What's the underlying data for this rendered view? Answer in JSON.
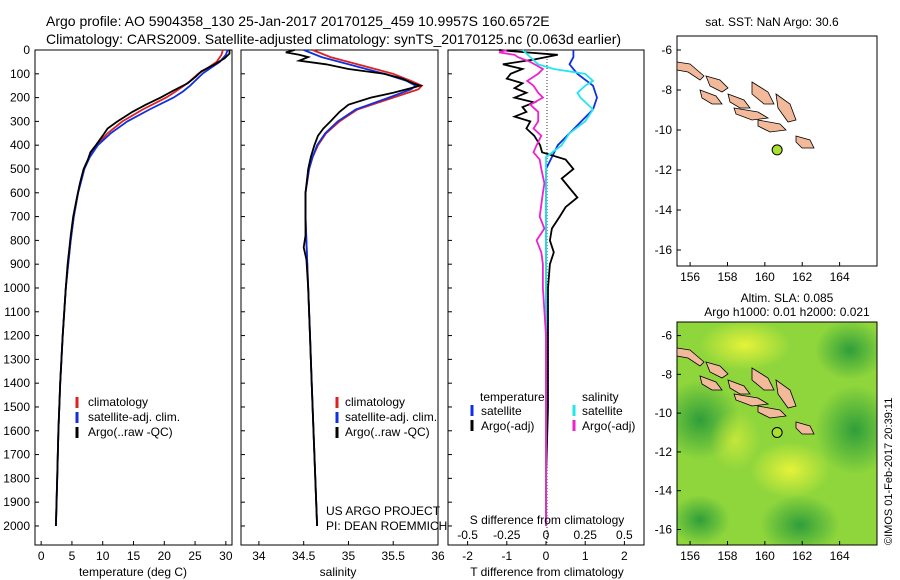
{
  "header": {
    "line1": "Argo profile: AO 5904358_130 25-Jan-2017 20170125_459 10.9957S 160.6572E",
    "line2": "Climatology: CARS2009. Satellite-adjusted climatology: synTS_20170125.nc (0.063d earlier)"
  },
  "colors": {
    "climatology": "#dd2222",
    "satellite": "#1030e0",
    "argo": "#000000",
    "sat_salinity": "#22e6ee",
    "argo_salinity": "#ee22cc",
    "land": "#f2b99a",
    "float_marker": "#a8e02a"
  },
  "depth_axis": {
    "ticks": [
      "0",
      "100",
      "200",
      "300",
      "400",
      "500",
      "600",
      "700",
      "800",
      "900",
      "1000",
      "1100",
      "1200",
      "1300",
      "1400",
      "1500",
      "1600",
      "1700",
      "1800",
      "1900",
      "2000"
    ]
  },
  "panels": {
    "temperature": {
      "xlabel": "temperature (deg C)",
      "xticks": [
        "0",
        "5",
        "10",
        "15",
        "20",
        "25",
        "30"
      ],
      "legend": [
        "climatology",
        "satellite-adj. clim.",
        "Argo(..raw -QC)"
      ]
    },
    "salinity": {
      "xlabel": "salinity",
      "xticks": [
        "34",
        "34.5",
        "35",
        "35.5",
        "36"
      ],
      "legend": [
        "climatology",
        "satellite-adj. clim.",
        "Argo(..raw -QC)"
      ],
      "project": "US ARGO PROJECT",
      "pi": "PI: DEAN ROEMMICH"
    },
    "difference": {
      "xlabel": "T difference from climatology",
      "xticks": [
        "-2",
        "-1",
        "0",
        "1",
        "2"
      ],
      "top_label": "S difference from climatology",
      "top_ticks": [
        "-0.5",
        "-0.25",
        "0",
        "0.25",
        "0.5"
      ],
      "legend_left_title": "temperature",
      "legend_left": [
        "satellite",
        "Argo(-adj)"
      ],
      "legend_right_title": "salinity",
      "legend_right": [
        "satellite",
        "Argo(-adj)"
      ]
    }
  },
  "maps": {
    "sst": {
      "title": "sat. SST: NaN Argo: 30.6"
    },
    "sla": {
      "title1": "Altim. SLA: 0.085",
      "title2": "Argo h1000: 0.01 h2000: 0.021"
    },
    "yticks": [
      "-6",
      "-8",
      "-10",
      "-12",
      "-14",
      "-16"
    ],
    "xticks": [
      "156",
      "158",
      "160",
      "162",
      "164"
    ],
    "float_position": {
      "lat": -10.9957,
      "lon": 160.6572
    }
  },
  "watermark": "©IMOS 01-Feb-2017 20:39:11",
  "chart_data": [
    {
      "type": "line",
      "panel": "temperature",
      "xlabel": "temperature (deg C)",
      "ylabel": "",
      "xlim": [
        -1,
        31
      ],
      "ylim": [
        2080,
        0
      ],
      "series": [
        {
          "name": "climatology",
          "depth": [
            0,
            20,
            50,
            80,
            100,
            130,
            150,
            175,
            200,
            250,
            300,
            350,
            400,
            450,
            500,
            600,
            700,
            800,
            900,
            1000,
            1200,
            1400,
            1600,
            1800,
            2000
          ],
          "values": [
            29.5,
            29.3,
            28.5,
            26.8,
            25.5,
            24.2,
            23.2,
            21.8,
            20.3,
            16.5,
            13.2,
            10.8,
            9.0,
            7.8,
            7.0,
            6.0,
            5.3,
            4.8,
            4.4,
            4.0,
            3.5,
            3.1,
            2.8,
            2.6,
            2.4
          ]
        },
        {
          "name": "satellite-adj. clim.",
          "depth": [
            0,
            20,
            50,
            80,
            100,
            130,
            150,
            175,
            200,
            250,
            300,
            350,
            400,
            450,
            500,
            600,
            700,
            800,
            900,
            1000,
            1200,
            1400,
            1600,
            1800,
            2000
          ],
          "values": [
            30.3,
            30.0,
            29.0,
            27.3,
            26.2,
            25.0,
            24.2,
            23.0,
            21.5,
            17.6,
            14.0,
            11.3,
            9.2,
            7.9,
            7.0,
            6.0,
            5.3,
            4.8,
            4.4,
            4.0,
            3.5,
            3.1,
            2.8,
            2.6,
            2.4
          ]
        },
        {
          "name": "Argo(..raw -QC)",
          "depth": [
            0,
            15,
            35,
            60,
            90,
            110,
            140,
            170,
            200,
            230,
            260,
            300,
            330,
            360,
            400,
            430,
            460,
            500,
            560,
            620,
            700,
            780,
            850,
            900,
            1000,
            1200,
            1400,
            1600,
            1800,
            2000
          ],
          "values": [
            30.6,
            30.6,
            29.8,
            28.2,
            26.0,
            25.2,
            23.8,
            21.5,
            19.4,
            17.0,
            14.8,
            12.4,
            10.8,
            10.0,
            8.9,
            8.0,
            7.6,
            6.9,
            6.3,
            5.8,
            5.2,
            4.8,
            4.5,
            4.3,
            4.0,
            3.5,
            3.1,
            2.8,
            2.6,
            2.4
          ]
        }
      ]
    },
    {
      "type": "line",
      "panel": "salinity",
      "xlabel": "salinity",
      "ylabel": "",
      "xlim": [
        33.8,
        36.0
      ],
      "ylim": [
        2080,
        0
      ],
      "series": [
        {
          "name": "climatology",
          "depth": [
            0,
            30,
            60,
            100,
            130,
            150,
            165,
            200,
            250,
            300,
            350,
            400,
            450,
            500,
            600,
            700,
            800,
            1000,
            1200,
            1400,
            1600,
            1800,
            2000
          ],
          "values": [
            34.6,
            34.8,
            35.1,
            35.5,
            35.7,
            35.82,
            35.78,
            35.5,
            35.1,
            34.9,
            34.75,
            34.66,
            34.6,
            34.56,
            34.52,
            34.52,
            34.53,
            34.55,
            34.57,
            34.59,
            34.61,
            34.63,
            34.65
          ]
        },
        {
          "name": "satellite-adj. clim.",
          "depth": [
            0,
            30,
            60,
            100,
            130,
            150,
            165,
            200,
            250,
            300,
            350,
            400,
            450,
            500,
            600,
            700,
            800,
            1000,
            1200,
            1400,
            1600,
            1800,
            2000
          ],
          "values": [
            34.5,
            34.7,
            35.0,
            35.4,
            35.65,
            35.75,
            35.7,
            35.45,
            35.08,
            34.88,
            34.74,
            34.65,
            34.6,
            34.56,
            34.52,
            34.52,
            34.53,
            34.55,
            34.57,
            34.59,
            34.61,
            34.63,
            34.65
          ]
        },
        {
          "name": "Argo(..raw -QC)",
          "depth": [
            0,
            10,
            20,
            30,
            45,
            60,
            80,
            100,
            120,
            140,
            150,
            160,
            180,
            200,
            230,
            260,
            300,
            330,
            360,
            400,
            450,
            500,
            600,
            700,
            780,
            830,
            880,
            1000,
            1200,
            1400,
            1600,
            1800,
            2000
          ],
          "values": [
            34.4,
            34.3,
            34.45,
            34.55,
            34.45,
            34.75,
            35.0,
            35.4,
            35.6,
            35.72,
            35.8,
            35.7,
            35.5,
            35.25,
            35.0,
            34.9,
            34.8,
            34.72,
            34.66,
            34.62,
            34.58,
            34.55,
            34.52,
            34.52,
            34.52,
            34.5,
            34.53,
            34.55,
            34.57,
            34.59,
            34.61,
            34.63,
            34.65
          ]
        }
      ]
    },
    {
      "type": "line",
      "panel": "difference",
      "xlabel": "T difference from climatology",
      "ylabel": "",
      "xlim": [
        -2.5,
        2.5
      ],
      "ylim": [
        2080,
        0
      ],
      "s_xlim": [
        -0.625,
        0.625
      ],
      "series": [
        {
          "name": "satellite",
          "quantity": "temperature",
          "depth": [
            0,
            30,
            60,
            100,
            150,
            200,
            250,
            300,
            350,
            400,
            450,
            500,
            600,
            700,
            800,
            1000,
            1200,
            1500,
            2000
          ],
          "values": [
            0.7,
            0.7,
            0.6,
            0.8,
            1.2,
            1.3,
            1.2,
            0.9,
            0.6,
            0.3,
            0.15,
            0.0,
            0.0,
            0.0,
            0.0,
            0.0,
            0.0,
            0.0,
            0.0
          ]
        },
        {
          "name": "Argo(-adj)",
          "quantity": "temperature",
          "depth": [
            0,
            10,
            20,
            40,
            60,
            80,
            100,
            120,
            140,
            160,
            180,
            200,
            220,
            240,
            260,
            280,
            300,
            330,
            360,
            400,
            430,
            460,
            500,
            540,
            580,
            620,
            660,
            700,
            750,
            800,
            850,
            900,
            1000,
            1200,
            1500,
            1800,
            2000
          ],
          "values": [
            -1.2,
            -0.5,
            0.3,
            -0.3,
            -1.1,
            -0.6,
            -0.9,
            -1.0,
            -0.6,
            -0.8,
            -0.5,
            -0.8,
            -0.3,
            -0.6,
            -0.5,
            -0.8,
            -0.4,
            -0.5,
            -0.3,
            -0.15,
            -0.1,
            0.5,
            0.7,
            0.4,
            0.6,
            0.8,
            0.5,
            0.35,
            0.15,
            0.1,
            0.2,
            0.1,
            0.05,
            0.05,
            0.05,
            0.0,
            0.0
          ]
        },
        {
          "name": "satellite",
          "quantity": "salinity",
          "depth": [
            0,
            30,
            60,
            80,
            100,
            130,
            150,
            180,
            200,
            250,
            300,
            350,
            400,
            450,
            500,
            550,
            600,
            700,
            800,
            1000,
            2000
          ],
          "values": [
            -0.15,
            -0.1,
            -0.05,
            0.05,
            0.25,
            0.3,
            0.25,
            0.2,
            0.22,
            0.3,
            0.25,
            0.15,
            0.1,
            0.0,
            0.0,
            0.0,
            0.0,
            0.0,
            0.0,
            0.0,
            0.0
          ]
        },
        {
          "name": "Argo(-adj)",
          "quantity": "salinity",
          "depth": [
            0,
            10,
            20,
            30,
            50,
            80,
            100,
            130,
            150,
            180,
            200,
            230,
            260,
            300,
            330,
            360,
            400,
            430,
            460,
            500,
            560,
            600,
            700,
            750,
            800,
            850,
            900,
            1000,
            1200,
            1500,
            2000
          ],
          "values": [
            -0.25,
            -0.3,
            -0.2,
            -0.18,
            -0.1,
            -0.02,
            -0.05,
            -0.12,
            -0.08,
            -0.05,
            -0.02,
            -0.1,
            -0.05,
            -0.05,
            -0.08,
            -0.03,
            -0.06,
            -0.08,
            -0.04,
            -0.03,
            -0.01,
            -0.02,
            -0.04,
            -0.01,
            -0.06,
            -0.03,
            -0.02,
            -0.02,
            0.0,
            0.0,
            0.0
          ]
        }
      ]
    }
  ]
}
